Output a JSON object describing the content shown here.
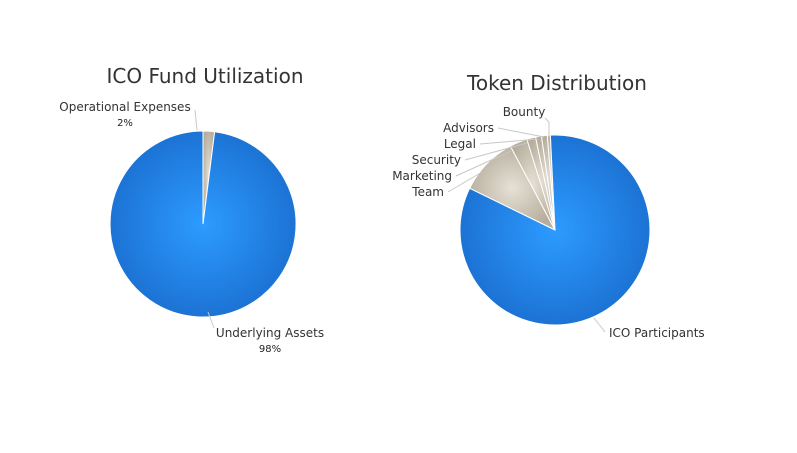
{
  "chart_data": [
    {
      "type": "pie",
      "title": "ICO Fund Utilization",
      "slices": [
        {
          "label": "Operational Expenses",
          "value": 2,
          "pct_label": "2%",
          "color": "#c4bdb0"
        },
        {
          "label": "Underlying Assets",
          "value": 98,
          "pct_label": "98%",
          "color": "#1e90ff"
        }
      ]
    },
    {
      "type": "pie",
      "title": "Token Distribution",
      "slices": [
        {
          "label": "Team",
          "value": 10,
          "color": "#c4bdb0"
        },
        {
          "label": "Marketing",
          "value": 3,
          "color": "#c4bdb0"
        },
        {
          "label": "Security",
          "value": 1.5,
          "color": "#c4bdb0"
        },
        {
          "label": "Legal",
          "value": 1,
          "color": "#c4bdb0"
        },
        {
          "label": "Advisors",
          "value": 1,
          "color": "#c4bdb0"
        },
        {
          "label": "Bounty",
          "value": 0.5,
          "color": "#c4bdb0"
        },
        {
          "label": "ICO Participants",
          "value": 83,
          "color": "#1e90ff"
        }
      ]
    }
  ]
}
